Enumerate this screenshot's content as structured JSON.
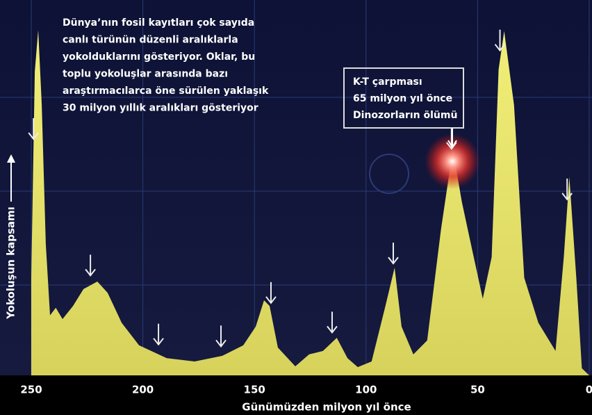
{
  "chart_data": {
    "type": "area",
    "annotation_lines": [
      "Dünya’nın fosil kayıtları çok sayıda",
      "canlı türünün düzenli aralıklarla",
      "yokolduklarını gösteriyor. Oklar, bu",
      "toplu yokoluşlar arasında bazı",
      "araştırmacılarca öne sürülen yaklaşık",
      "30 milyon yıllık aralıkları gösteriyor"
    ],
    "callout_lines": [
      "K-T çarpması",
      "65 milyon yıl önce",
      "Dinozorların ölümü"
    ],
    "xlabel": "Günümüzden milyon yıl önce",
    "ylabel": "Yokoluşun kapsamı",
    "x": [
      250,
      248.4,
      246.9,
      245.3,
      243.5,
      241.6,
      239,
      236,
      231.3,
      226.6,
      220.4,
      215.8,
      209.5,
      201.7,
      189.3,
      176.8,
      164.4,
      155,
      149.4,
      145.7,
      143.2,
      139.5,
      131.7,
      125.5,
      119.3,
      113.1,
      108.3,
      103.7,
      97.5,
      91.3,
      87.2,
      84.1,
      78.8,
      72.6,
      66.4,
      61.1,
      57.1,
      52.4,
      47.7,
      43.7,
      40.6,
      38.1,
      33.7,
      29.1,
      22.8,
      15.1,
      11.4,
      8.9,
      5.8,
      3.3,
      0
    ],
    "values": [
      26,
      81,
      92,
      72,
      35,
      16,
      18,
      15,
      18.5,
      23,
      25,
      22,
      14,
      8,
      4.6,
      3.7,
      5.2,
      8,
      13,
      20,
      18.5,
      7.4,
      2.4,
      5.6,
      6.5,
      10,
      4.6,
      2.2,
      3.7,
      18.5,
      28.7,
      13,
      5.6,
      9.3,
      38.9,
      60.2,
      46.3,
      33.3,
      20.4,
      31.5,
      81.5,
      91.7,
      72,
      26,
      14,
      6.5,
      31.5,
      52.8,
      26,
      1.9,
      0
    ],
    "color": "#ebe86c",
    "arrows": [
      249,
      223.5,
      193,
      165,
      142.6,
      115.2,
      87.8,
      61.7,
      40,
      9.9
    ],
    "xlim": [
      250,
      0
    ],
    "ylim": [
      0,
      100
    ],
    "xticks": [
      250,
      200,
      150,
      100,
      50,
      0
    ],
    "grid": true
  }
}
